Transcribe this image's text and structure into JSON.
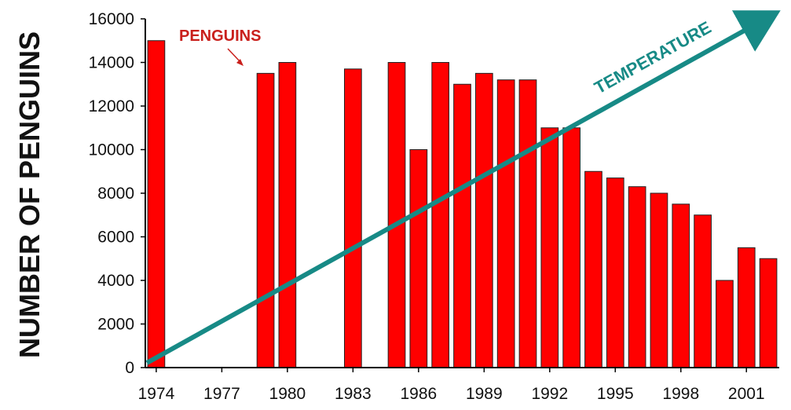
{
  "chart_data": {
    "type": "bar",
    "title": "",
    "xlabel": "",
    "ylabel": "NUMBER OF PENGUINS",
    "ylim": [
      0,
      16000
    ],
    "yticks": [
      0,
      2000,
      4000,
      6000,
      8000,
      10000,
      12000,
      14000,
      16000
    ],
    "xticks": [
      "1974",
      "1977",
      "1980",
      "1983",
      "1986",
      "1989",
      "1992",
      "1995",
      "1998",
      "2001"
    ],
    "categories": [
      "1974",
      "1975",
      "1976",
      "1977",
      "1978",
      "1979",
      "1980",
      "1981",
      "1982",
      "1983",
      "1984",
      "1985",
      "1986",
      "1987",
      "1988",
      "1989",
      "1990",
      "1991",
      "1992",
      "1993",
      "1994",
      "1995",
      "1996",
      "1997",
      "1998",
      "1999",
      "2000",
      "2001",
      "2002"
    ],
    "series": [
      {
        "name": "PENGUINS",
        "color": "#ff0000",
        "values": [
          15000,
          null,
          null,
          null,
          null,
          13500,
          14000,
          null,
          null,
          13700,
          null,
          14000,
          10000,
          14000,
          13000,
          13500,
          13200,
          13200,
          11000,
          11000,
          9000,
          8700,
          8300,
          8000,
          7500,
          7000,
          4000,
          5500,
          5000
        ]
      }
    ],
    "annotations": [
      {
        "text": "PENGUINS",
        "color": "#c9201c"
      },
      {
        "text": "TEMPERATURE",
        "color": "#178a86"
      }
    ],
    "trend_arrow": {
      "label": "TEMPERATURE",
      "color": "#178a86",
      "from_year": "1974",
      "to_year": "2002",
      "direction": "increasing"
    },
    "grid": false,
    "legend": "none"
  }
}
